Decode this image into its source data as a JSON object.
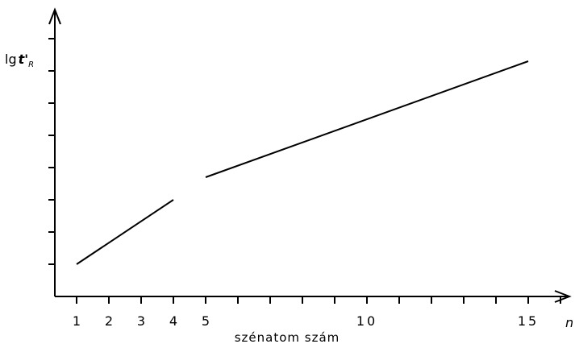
{
  "chart_data": {
    "type": "line",
    "xlabel": "szénatom szám",
    "x_axis_symbol": "n",
    "ylabel_prefix": "lg",
    "ylabel_symbol": "t'",
    "ylabel_subscript": "R",
    "xlim": [
      0.3,
      16.5
    ],
    "ylim": [
      0,
      8.5
    ],
    "x_tick_labels": [
      {
        "value": 1,
        "label": "1"
      },
      {
        "value": 2,
        "label": "2"
      },
      {
        "value": 3,
        "label": "3"
      },
      {
        "value": 4,
        "label": "4"
      },
      {
        "value": 5,
        "label": "5"
      },
      {
        "value": 10,
        "label": "10"
      },
      {
        "value": 15,
        "label": "15"
      }
    ],
    "x_minor_ticks": [
      6,
      7,
      8,
      9,
      11,
      12,
      13,
      14,
      16
    ],
    "y_ticks": [
      1,
      2,
      3,
      4,
      5,
      6,
      7,
      8
    ],
    "series": [
      {
        "segments": [
          {
            "x": [
              1,
              4
            ],
            "y": [
              1.0,
              3.0
            ]
          },
          {
            "x": [
              5,
              15
            ],
            "y": [
              3.7,
              7.3
            ]
          }
        ]
      }
    ],
    "grid": false,
    "legend": "none",
    "line_color": "#000000"
  }
}
